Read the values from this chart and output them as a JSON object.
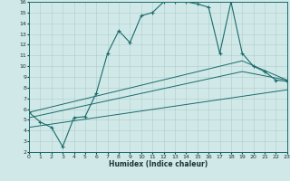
{
  "xlabel": "Humidex (Indice chaleur)",
  "bg_color": "#d0e8e8",
  "grid_color": "#b0cccc",
  "line_color": "#1a6b6b",
  "xlim": [
    0,
    23
  ],
  "ylim": [
    2,
    16
  ],
  "xticks": [
    0,
    1,
    2,
    3,
    4,
    5,
    6,
    7,
    8,
    9,
    10,
    11,
    12,
    13,
    14,
    15,
    16,
    17,
    18,
    19,
    20,
    21,
    22,
    23
  ],
  "yticks": [
    2,
    3,
    4,
    5,
    6,
    7,
    8,
    9,
    10,
    11,
    12,
    13,
    14,
    15,
    16
  ],
  "curve_x": [
    0,
    1,
    2,
    3,
    4,
    5,
    6,
    7,
    8,
    9,
    10,
    11,
    12,
    13,
    14,
    15,
    16,
    17,
    18,
    19,
    20,
    21,
    22,
    23
  ],
  "curve_y": [
    5.7,
    4.8,
    4.3,
    2.5,
    5.2,
    5.3,
    7.5,
    11.2,
    13.3,
    12.2,
    14.7,
    15.0,
    16.0,
    16.0,
    16.0,
    15.8,
    15.5,
    11.2,
    16.0,
    11.2,
    10.0,
    9.5,
    8.7,
    8.6
  ],
  "line2_x": [
    0,
    19,
    23
  ],
  "line2_y": [
    5.7,
    10.5,
    8.7
  ],
  "line3_x": [
    0,
    19,
    23
  ],
  "line3_y": [
    5.2,
    9.5,
    8.7
  ],
  "line4_x": [
    0,
    23
  ],
  "line4_y": [
    4.3,
    7.8
  ]
}
